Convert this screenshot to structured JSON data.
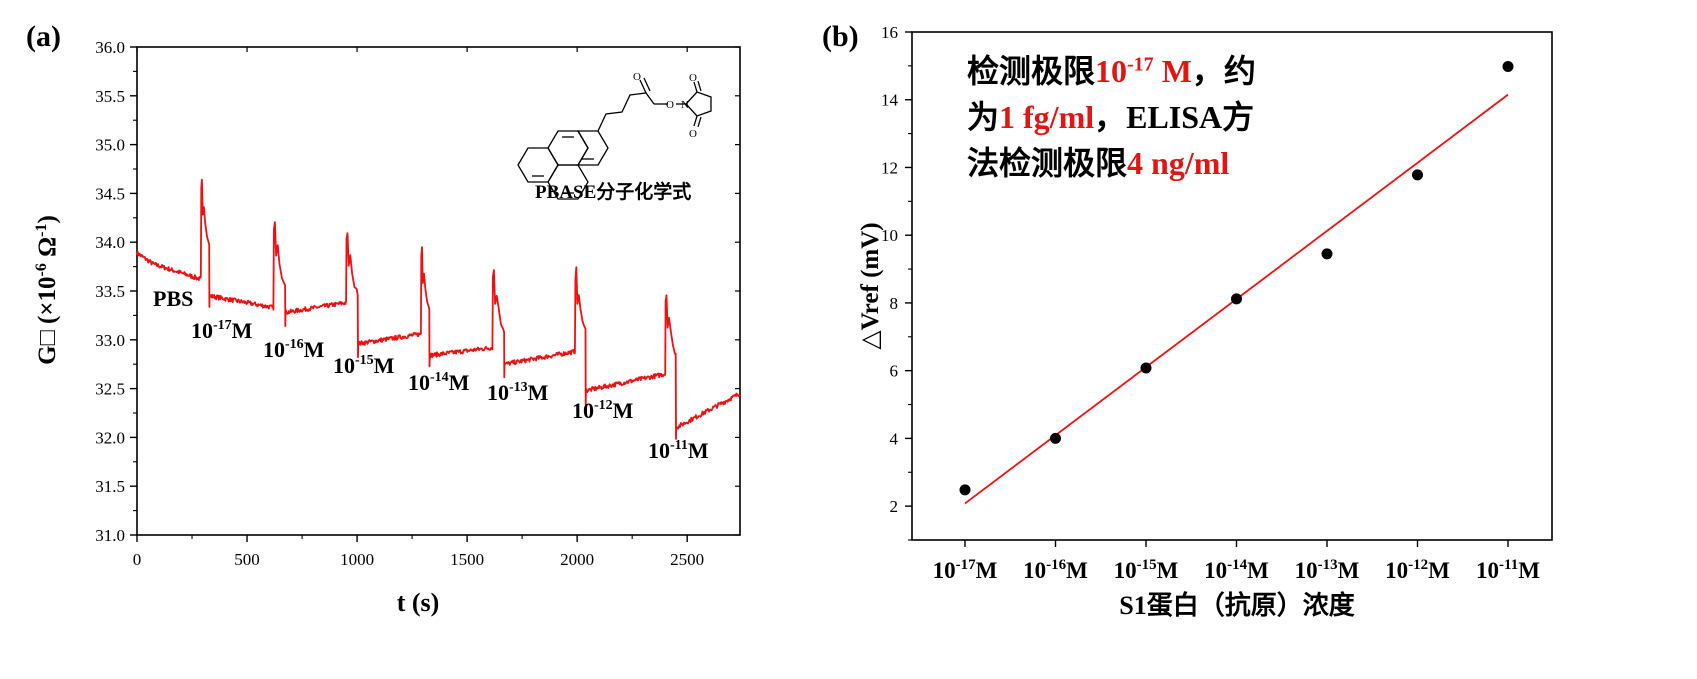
{
  "chart_data": [
    {
      "panel": "(a)",
      "type": "line",
      "xlabel": "t (s)",
      "ylabel_base": "G□ (×10",
      "ylabel_exp1": "-6",
      "ylabel_mid": " Ω",
      "ylabel_exp2": "-1",
      "ylabel_end": ")",
      "xlim": [
        0,
        2740
      ],
      "ylim": [
        31.0,
        36.0
      ],
      "xticks": [
        0,
        500,
        1000,
        1500,
        2000,
        2500
      ],
      "yticks": [
        "31.0",
        "31.5",
        "32.0",
        "32.5",
        "33.0",
        "33.5",
        "34.0",
        "34.5",
        "35.0",
        "35.5",
        "36.0"
      ],
      "series_color": "#ee1111",
      "segments": [
        {
          "t0": 0,
          "t1": 290,
          "v0": 33.83,
          "v1": 33.62,
          "spike": 34.62
        },
        {
          "t0": 330,
          "t1": 620,
          "v0": 33.45,
          "v1": 33.33,
          "spike": 34.2
        },
        {
          "t0": 675,
          "t1": 950,
          "v0": 33.28,
          "v1": 33.38,
          "spike": 34.1
        },
        {
          "t0": 1005,
          "t1": 1290,
          "v0": 32.96,
          "v1": 33.06,
          "spike": 33.95
        },
        {
          "t0": 1330,
          "t1": 1615,
          "v0": 32.84,
          "v1": 32.92,
          "spike": 33.72
        },
        {
          "t0": 1670,
          "t1": 1990,
          "v0": 32.75,
          "v1": 32.88,
          "spike": 33.72
        },
        {
          "t0": 2040,
          "t1": 2400,
          "v0": 32.48,
          "v1": 32.65,
          "spike": 33.48
        },
        {
          "t0": 2450,
          "t1": 2740,
          "v0": 32.1,
          "v1": 32.45
        }
      ],
      "annotations": [
        {
          "text": "PBS",
          "exp": "",
          "tail": ""
        },
        {
          "text": "10",
          "exp": "-17",
          "tail": "M"
        },
        {
          "text": "10",
          "exp": "-16",
          "tail": "M"
        },
        {
          "text": "10",
          "exp": "-15",
          "tail": "M"
        },
        {
          "text": "10",
          "exp": "-14",
          "tail": "M"
        },
        {
          "text": "10",
          "exp": "-13",
          "tail": "M"
        },
        {
          "text": "10",
          "exp": "-12",
          "tail": "M"
        },
        {
          "text": "10",
          "exp": "-11",
          "tail": "M"
        }
      ],
      "inset_label": "PBASE分子化学式"
    },
    {
      "panel": "(b)",
      "type": "scatter",
      "xlabel": "S1蛋白（抗原）浓度",
      "ylabel": "△Vref (mV)",
      "ylim": [
        1,
        16
      ],
      "yticks": [
        "2",
        "4",
        "6",
        "8",
        "10",
        "12",
        "14",
        "16"
      ],
      "categories": [
        {
          "base": "10",
          "exp": "-17",
          "tail": "M"
        },
        {
          "base": "10",
          "exp": "-16",
          "tail": "M"
        },
        {
          "base": "10",
          "exp": "-15",
          "tail": "M"
        },
        {
          "base": "10",
          "exp": "-14",
          "tail": "M"
        },
        {
          "base": "10",
          "exp": "-13",
          "tail": "M"
        },
        {
          "base": "10",
          "exp": "-12",
          "tail": "M"
        },
        {
          "base": "10",
          "exp": "-11",
          "tail": "M"
        }
      ],
      "values": [
        2.48,
        4.0,
        6.08,
        8.12,
        9.45,
        11.78,
        14.98
      ],
      "fit": {
        "y_start": 2.08,
        "y_end": 14.15,
        "color": "#ee1111"
      },
      "annotation": {
        "line1_a": "检测极限",
        "line1_b": "10",
        "line1_exp": "-17",
        "line1_c": " M",
        "line1_d": "，约",
        "line2_a": "为",
        "line2_b": "1 fg/ml",
        "line2_c": "，ELISA方",
        "line3_a": "法检测极限",
        "line3_b": "4 ng/ml"
      }
    }
  ]
}
